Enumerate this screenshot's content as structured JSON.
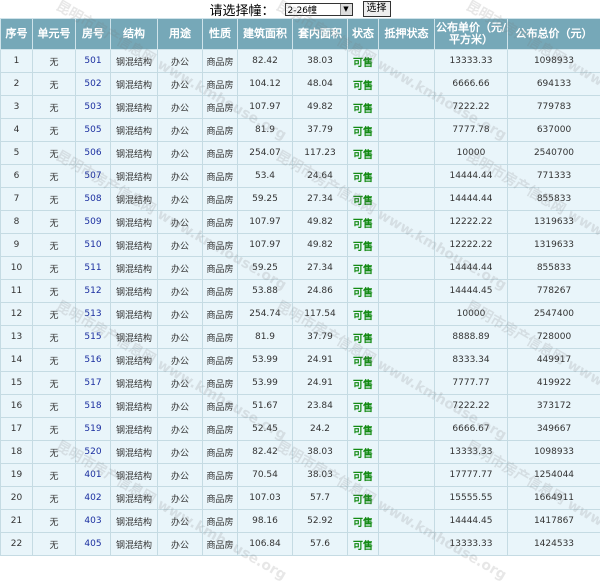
{
  "selector": {
    "label": "请选择幢：",
    "value": "2-26幢",
    "button": "选择"
  },
  "headers": [
    "序号",
    "单元号",
    "房号",
    "结构",
    "用途",
    "性质",
    "建筑面积",
    "套内面积",
    "状态",
    "抵押状态",
    "公布单价（元/平方米）",
    "公布总价（元）"
  ],
  "rows": [
    [
      "1",
      "无",
      "501",
      "钢混结构",
      "办公",
      "商品房",
      "82.42",
      "38.03",
      "可售",
      "",
      "13333.33",
      "1098933"
    ],
    [
      "2",
      "无",
      "502",
      "钢混结构",
      "办公",
      "商品房",
      "104.12",
      "48.04",
      "可售",
      "",
      "6666.66",
      "694133"
    ],
    [
      "3",
      "无",
      "503",
      "钢混结构",
      "办公",
      "商品房",
      "107.97",
      "49.82",
      "可售",
      "",
      "7222.22",
      "779783"
    ],
    [
      "4",
      "无",
      "505",
      "钢混结构",
      "办公",
      "商品房",
      "81.9",
      "37.79",
      "可售",
      "",
      "7777.78",
      "637000"
    ],
    [
      "5",
      "无",
      "506",
      "钢混结构",
      "办公",
      "商品房",
      "254.07",
      "117.23",
      "可售",
      "",
      "10000",
      "2540700"
    ],
    [
      "6",
      "无",
      "507",
      "钢混结构",
      "办公",
      "商品房",
      "53.4",
      "24.64",
      "可售",
      "",
      "14444.44",
      "771333"
    ],
    [
      "7",
      "无",
      "508",
      "钢混结构",
      "办公",
      "商品房",
      "59.25",
      "27.34",
      "可售",
      "",
      "14444.44",
      "855833"
    ],
    [
      "8",
      "无",
      "509",
      "钢混结构",
      "办公",
      "商品房",
      "107.97",
      "49.82",
      "可售",
      "",
      "12222.22",
      "1319633"
    ],
    [
      "9",
      "无",
      "510",
      "钢混结构",
      "办公",
      "商品房",
      "107.97",
      "49.82",
      "可售",
      "",
      "12222.22",
      "1319633"
    ],
    [
      "10",
      "无",
      "511",
      "钢混结构",
      "办公",
      "商品房",
      "59.25",
      "27.34",
      "可售",
      "",
      "14444.44",
      "855833"
    ],
    [
      "11",
      "无",
      "512",
      "钢混结构",
      "办公",
      "商品房",
      "53.88",
      "24.86",
      "可售",
      "",
      "14444.45",
      "778267"
    ],
    [
      "12",
      "无",
      "513",
      "钢混结构",
      "办公",
      "商品房",
      "254.74",
      "117.54",
      "可售",
      "",
      "10000",
      "2547400"
    ],
    [
      "13",
      "无",
      "515",
      "钢混结构",
      "办公",
      "商品房",
      "81.9",
      "37.79",
      "可售",
      "",
      "8888.89",
      "728000"
    ],
    [
      "14",
      "无",
      "516",
      "钢混结构",
      "办公",
      "商品房",
      "53.99",
      "24.91",
      "可售",
      "",
      "8333.34",
      "449917"
    ],
    [
      "15",
      "无",
      "517",
      "钢混结构",
      "办公",
      "商品房",
      "53.99",
      "24.91",
      "可售",
      "",
      "7777.77",
      "419922"
    ],
    [
      "16",
      "无",
      "518",
      "钢混结构",
      "办公",
      "商品房",
      "51.67",
      "23.84",
      "可售",
      "",
      "7222.22",
      "373172"
    ],
    [
      "17",
      "无",
      "519",
      "钢混结构",
      "办公",
      "商品房",
      "52.45",
      "24.2",
      "可售",
      "",
      "6666.67",
      "349667"
    ],
    [
      "18",
      "无",
      "520",
      "钢混结构",
      "办公",
      "商品房",
      "82.42",
      "38.03",
      "可售",
      "",
      "13333.33",
      "1098933"
    ],
    [
      "19",
      "无",
      "401",
      "钢混结构",
      "办公",
      "商品房",
      "70.54",
      "38.03",
      "可售",
      "",
      "17777.77",
      "1254044"
    ],
    [
      "20",
      "无",
      "402",
      "钢混结构",
      "办公",
      "商品房",
      "107.03",
      "57.7",
      "可售",
      "",
      "15555.55",
      "1664911"
    ],
    [
      "21",
      "无",
      "403",
      "钢混结构",
      "办公",
      "商品房",
      "98.16",
      "52.92",
      "可售",
      "",
      "14444.45",
      "1417867"
    ],
    [
      "22",
      "无",
      "405",
      "钢混结构",
      "办公",
      "商品房",
      "106.84",
      "57.6",
      "可售",
      "",
      "13333.33",
      "1424533"
    ]
  ],
  "watermark": "昆明市房产信息网 www.kmhouse.org",
  "colors": {
    "header": "#76a8b8",
    "row": "#e9f5fa",
    "status": "#138a13",
    "room": "#1a2ea0"
  }
}
